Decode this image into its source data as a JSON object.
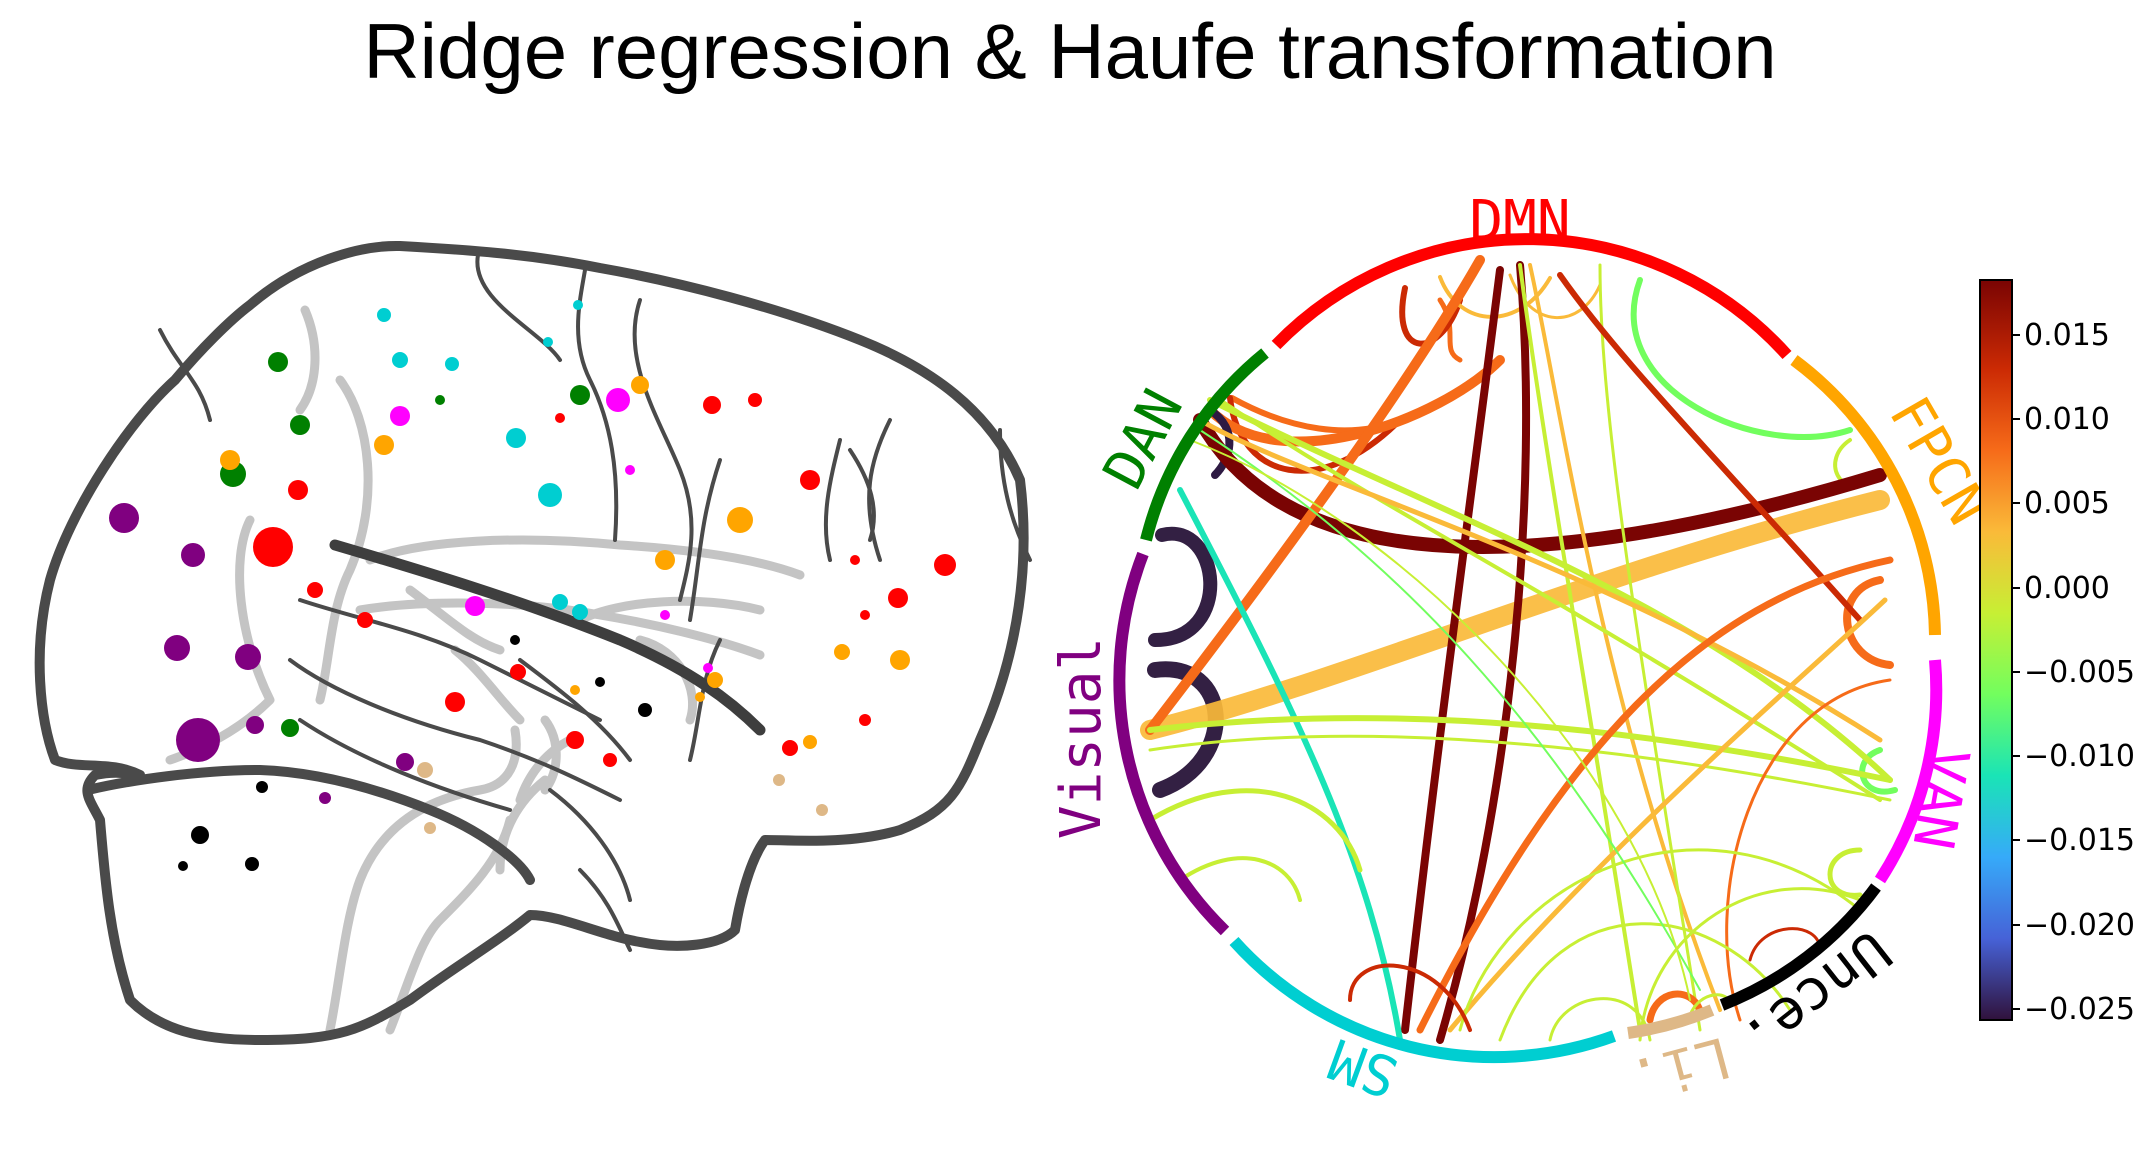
{
  "title": "Ridge regression & Haufe transformation",
  "networks": [
    {
      "key": "DMN",
      "label": "DMN",
      "color": "#ff0000"
    },
    {
      "key": "FPCN",
      "label": "FPCN",
      "color": "#ffa500"
    },
    {
      "key": "VAN",
      "label": "VAN",
      "color": "#ff00ff"
    },
    {
      "key": "Unce",
      "label": "Unce.",
      "color": "#000000"
    },
    {
      "key": "Li",
      "label": "Li.",
      "color": "#deb887"
    },
    {
      "key": "SM",
      "label": "SM",
      "color": "#00ced1"
    },
    {
      "key": "Visual",
      "label": "Visual",
      "color": "#800080"
    },
    {
      "key": "DAN",
      "label": "DAN",
      "color": "#008000"
    }
  ],
  "colorbar": {
    "ticks": [
      "0.015",
      "0.010",
      "0.005",
      "0.000",
      "−0.005",
      "−0.010",
      "−0.015",
      "−0.020",
      "−0.025"
    ],
    "min": -0.026,
    "max": 0.018,
    "colormap": [
      "#30123b",
      "#4662d7",
      "#36aaf9",
      "#1ae4b6",
      "#72fe5e",
      "#c7ef34",
      "#faba39",
      "#f66b19",
      "#cb2a04",
      "#7a0403"
    ]
  }
}
